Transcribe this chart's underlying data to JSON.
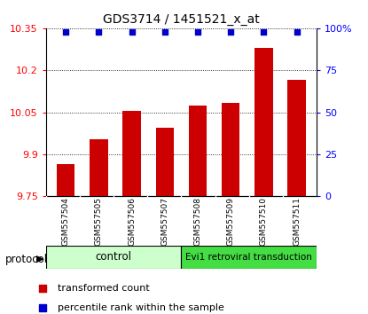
{
  "title": "GDS3714 / 1451521_x_at",
  "samples": [
    "GSM557504",
    "GSM557505",
    "GSM557506",
    "GSM557507",
    "GSM557508",
    "GSM557509",
    "GSM557510",
    "GSM557511"
  ],
  "bar_values": [
    9.865,
    9.955,
    10.055,
    9.995,
    10.075,
    10.085,
    10.28,
    10.165
  ],
  "percentile_values": [
    98,
    98,
    98,
    98,
    98,
    98,
    98,
    98
  ],
  "bar_color": "#cc0000",
  "percentile_color": "#0000cc",
  "ylim_left": [
    9.75,
    10.35
  ],
  "yticks_left": [
    9.75,
    9.9,
    10.05,
    10.2,
    10.35
  ],
  "ylim_right": [
    0,
    100
  ],
  "yticks_right": [
    0,
    25,
    50,
    75,
    100
  ],
  "yticklabels_right": [
    "0",
    "25",
    "50",
    "75",
    "100%"
  ],
  "control_label": "control",
  "evi_label": "Evi1 retroviral transduction",
  "control_color": "#ccffcc",
  "evi_color": "#44dd44",
  "protocol_label": "protocol",
  "legend_bar_label": "transformed count",
  "legend_pct_label": "percentile rank within the sample",
  "bar_color_leg": "#cc0000",
  "pct_color_leg": "#0000cc",
  "bar_width": 0.55,
  "background_color": "#ffffff",
  "sample_box_color": "#cccccc",
  "title_fontsize": 10
}
